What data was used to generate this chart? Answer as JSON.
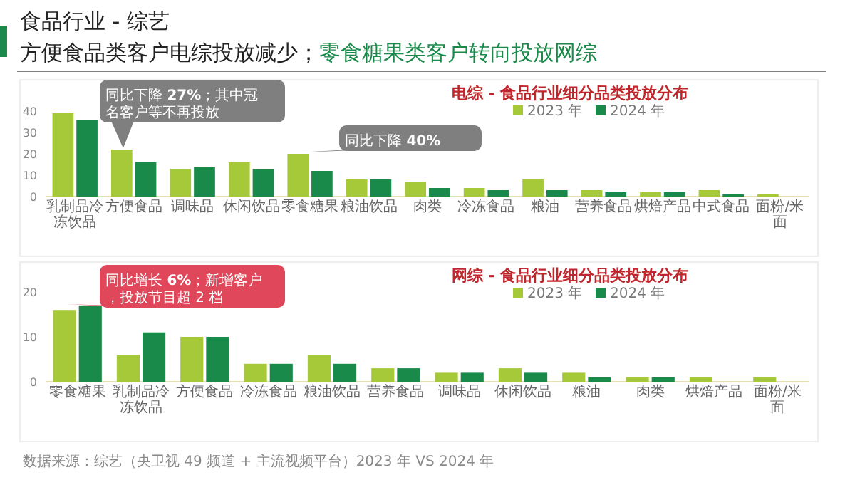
{
  "chart_data": [
    {
      "type": "bar",
      "title": "电综 - 食品行业细分品类投放分布",
      "legend": "top",
      "grid": false,
      "categories": [
        "乳制品冷冻饮品",
        "方便食品",
        "调味品",
        "休闲饮品",
        "零食糖果",
        "粮油饮品",
        "肉类",
        "冷冻食品",
        "粮油",
        "营养食品",
        "烘焙产品",
        "中式食品",
        "面粉/米面"
      ],
      "series": [
        {
          "name": "2023 年",
          "color": "#a6c93a",
          "values": [
            39,
            22,
            13,
            16,
            20,
            8,
            7,
            4,
            8,
            3,
            2,
            3,
            1
          ]
        },
        {
          "name": "2024 年",
          "color": "#1a8a4a",
          "values": [
            36,
            16,
            14,
            13,
            12,
            8,
            4,
            3,
            3,
            2,
            2,
            1,
            null
          ]
        }
      ],
      "ylim": [
        0,
        40
      ],
      "yticks": [
        0,
        10,
        20,
        30,
        40
      ],
      "annotations": [
        "食品行业 - 综艺",
        "方便食品类客户电综投放减少；",
        "零食糖果类客户转向投放网综",
        {
          "text": "同比下降 **27%**；其中冠名客户等不再投放",
          "x": "方便食品",
          "y": 22
        },
        {
          "text": "同比下降 **40%**",
          "x": "零食糖果",
          "y": 20
        }
      ]
    },
    {
      "type": "bar",
      "title": "网综 - 食品行业细分品类投放分布",
      "legend": "top",
      "grid": false,
      "categories": [
        "零食糖果",
        "乳制品冷冻饮品",
        "方便食品",
        "冷冻食品",
        "粮油饮品",
        "营养食品",
        "调味品",
        "休闲饮品",
        "粮油",
        "肉类",
        "烘焙产品",
        "面粉/米面"
      ],
      "series": [
        {
          "name": "2023 年",
          "color": "#a6c93a",
          "values": [
            16,
            6,
            10,
            4,
            6,
            3,
            2,
            3,
            2,
            1,
            1,
            1
          ]
        },
        {
          "name": "2024 年",
          "color": "#1a8a4a",
          "values": [
            17,
            11,
            10,
            4,
            4,
            3,
            2,
            2,
            1,
            1,
            null,
            null
          ]
        }
      ],
      "ylim": [
        0,
        20
      ],
      "yticks": [
        0,
        10,
        20
      ],
      "annotations": [
        {
          "text": "同比增长 **6%**；新增客户，投放节目超 2 档",
          "x": "零食糖果",
          "y": 17
        },
        "数据来源：综艺（央卫视 49 频道 + 主流视频平台）2023 年 VS 2024 年"
      ]
    }
  ]
}
